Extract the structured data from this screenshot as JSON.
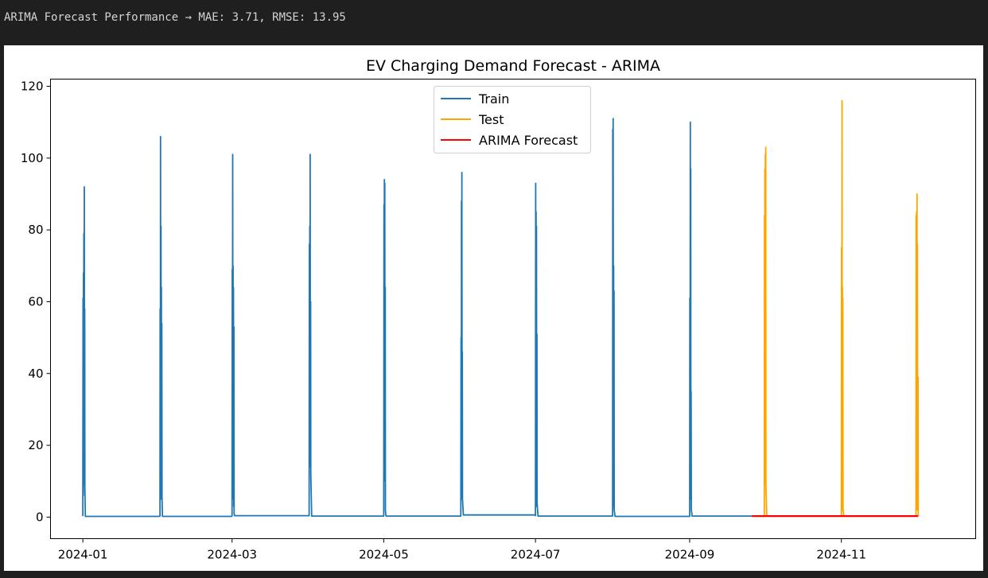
{
  "output": {
    "text": "ARIMA Forecast Performance → MAE: 3.71, RMSE: 13.95"
  },
  "colors": {
    "train": "#1f77b4",
    "test": "#ffa500",
    "forecast": "#ff0000"
  },
  "chart_data": {
    "type": "line",
    "title": "EV Charging Demand Forecast - ARIMA",
    "xlabel": "",
    "ylabel": "",
    "x_axis_kind": "date",
    "xlim": [
      "2023-12-19",
      "2024-12-25"
    ],
    "ylim": [
      -6,
      122
    ],
    "yticks": [
      0,
      20,
      40,
      60,
      80,
      100,
      120
    ],
    "xticks": [
      "2024-01",
      "2024-03",
      "2024-05",
      "2024-07",
      "2024-09",
      "2024-11"
    ],
    "grid": false,
    "legend": {
      "position": "upper-center",
      "entries": [
        "Train",
        "Test",
        "ARIMA Forecast"
      ]
    },
    "series": [
      {
        "name": "Train",
        "color": "#1f77b4",
        "points": [
          [
            "2024-01-01 00:00",
            0.3
          ],
          [
            "2024-01-01 02:00",
            61
          ],
          [
            "2024-01-01 04:00",
            6
          ],
          [
            "2024-01-01 06:00",
            68
          ],
          [
            "2024-01-01 08:00",
            12
          ],
          [
            "2024-01-01 10:00",
            79
          ],
          [
            "2024-01-01 12:00",
            9
          ],
          [
            "2024-01-01 14:00",
            92
          ],
          [
            "2024-01-01 16:00",
            11
          ],
          [
            "2024-01-01 18:00",
            58
          ],
          [
            "2024-01-01 20:00",
            8
          ],
          [
            "2024-01-02 00:00",
            0.2
          ],
          [
            "2024-01-31 18:00",
            0.2
          ],
          [
            "2024-02-01 00:00",
            0.3
          ],
          [
            "2024-02-01 02:00",
            58
          ],
          [
            "2024-02-01 04:00",
            14
          ],
          [
            "2024-02-01 06:00",
            106
          ],
          [
            "2024-02-01 08:00",
            20
          ],
          [
            "2024-02-01 10:00",
            81
          ],
          [
            "2024-02-01 12:00",
            5
          ],
          [
            "2024-02-01 14:00",
            64
          ],
          [
            "2024-02-01 16:00",
            9
          ],
          [
            "2024-02-01 18:00",
            54
          ],
          [
            "2024-02-01 20:00",
            5
          ],
          [
            "2024-02-02 00:00",
            0.2
          ],
          [
            "2024-02-29 18:00",
            0.2
          ],
          [
            "2024-03-01 00:00",
            0.3
          ],
          [
            "2024-03-01 02:00",
            69
          ],
          [
            "2024-03-01 04:00",
            23
          ],
          [
            "2024-03-01 06:00",
            101
          ],
          [
            "2024-03-01 08:00",
            20
          ],
          [
            "2024-03-01 10:00",
            70
          ],
          [
            "2024-03-01 12:00",
            5
          ],
          [
            "2024-03-01 14:00",
            64
          ],
          [
            "2024-03-01 16:00",
            3
          ],
          [
            "2024-03-01 18:00",
            53
          ],
          [
            "2024-03-01 20:00",
            1
          ],
          [
            "2024-03-02 00:00",
            0.4
          ],
          [
            "2024-03-31 18:00",
            0.4
          ],
          [
            "2024-04-01 00:00",
            0.4
          ],
          [
            "2024-04-01 02:00",
            76
          ],
          [
            "2024-04-01 04:00",
            16
          ],
          [
            "2024-04-01 06:00",
            81
          ],
          [
            "2024-04-01 08:00",
            15
          ],
          [
            "2024-04-01 10:00",
            101
          ],
          [
            "2024-04-01 12:00",
            14
          ],
          [
            "2024-04-01 14:00",
            60
          ],
          [
            "2024-04-01 16:00",
            12
          ],
          [
            "2024-04-02 00:00",
            0.3
          ],
          [
            "2024-04-30 18:00",
            0.3
          ],
          [
            "2024-05-01 00:00",
            0.3
          ],
          [
            "2024-05-01 02:00",
            87
          ],
          [
            "2024-05-01 04:00",
            12
          ],
          [
            "2024-05-01 06:00",
            94
          ],
          [
            "2024-05-01 08:00",
            40
          ],
          [
            "2024-05-01 10:00",
            93
          ],
          [
            "2024-05-01 12:00",
            10
          ],
          [
            "2024-05-01 14:00",
            64
          ],
          [
            "2024-05-01 16:00",
            2
          ],
          [
            "2024-05-01 20:00",
            0.5
          ],
          [
            "2024-05-02 00:00",
            0.3
          ],
          [
            "2024-05-31 18:00",
            0.3
          ],
          [
            "2024-06-01 00:00",
            0.3
          ],
          [
            "2024-06-01 02:00",
            50
          ],
          [
            "2024-06-01 04:00",
            5
          ],
          [
            "2024-06-01 06:00",
            88
          ],
          [
            "2024-06-01 08:00",
            14
          ],
          [
            "2024-06-01 10:00",
            96
          ],
          [
            "2024-06-01 12:00",
            19
          ],
          [
            "2024-06-01 14:00",
            46
          ],
          [
            "2024-06-01 16:00",
            5
          ],
          [
            "2024-06-02 00:00",
            0.6
          ],
          [
            "2024-06-30 18:00",
            0.6
          ],
          [
            "2024-07-01 00:00",
            0.4
          ],
          [
            "2024-07-01 02:00",
            93
          ],
          [
            "2024-07-01 04:00",
            5
          ],
          [
            "2024-07-01 06:00",
            85
          ],
          [
            "2024-07-01 08:00",
            3
          ],
          [
            "2024-07-01 10:00",
            81
          ],
          [
            "2024-07-01 12:00",
            6
          ],
          [
            "2024-07-01 14:00",
            51
          ],
          [
            "2024-07-01 16:00",
            4
          ],
          [
            "2024-07-02 00:00",
            0.3
          ],
          [
            "2024-07-31 18:00",
            0.3
          ],
          [
            "2024-08-01 00:00",
            0.3
          ],
          [
            "2024-08-01 02:00",
            108
          ],
          [
            "2024-08-01 04:00",
            3
          ],
          [
            "2024-08-01 06:00",
            111
          ],
          [
            "2024-08-01 08:00",
            12
          ],
          [
            "2024-08-01 10:00",
            70
          ],
          [
            "2024-08-01 12:00",
            3
          ],
          [
            "2024-08-01 14:00",
            63
          ],
          [
            "2024-08-01 16:00",
            2
          ],
          [
            "2024-08-02 00:00",
            0.2
          ],
          [
            "2024-08-31 18:00",
            0.2
          ],
          [
            "2024-09-01 00:00",
            0.2
          ],
          [
            "2024-09-01 02:00",
            61
          ],
          [
            "2024-09-01 04:00",
            8
          ],
          [
            "2024-09-01 06:00",
            110
          ],
          [
            "2024-09-01 08:00",
            12
          ],
          [
            "2024-09-01 10:00",
            97
          ],
          [
            "2024-09-01 12:00",
            5
          ],
          [
            "2024-09-01 14:00",
            35
          ],
          [
            "2024-09-01 16:00",
            2
          ],
          [
            "2024-09-02 00:00",
            0.3
          ],
          [
            "2024-09-26 00:00",
            0.3
          ]
        ]
      },
      {
        "name": "Test",
        "color": "#ffa500",
        "points": [
          [
            "2024-09-26 00:00",
            0.3
          ],
          [
            "2024-09-30 18:00",
            0.3
          ],
          [
            "2024-10-01 00:00",
            0.3
          ],
          [
            "2024-10-01 02:00",
            84
          ],
          [
            "2024-10-01 04:00",
            9
          ],
          [
            "2024-10-01 06:00",
            97
          ],
          [
            "2024-10-01 08:00",
            10
          ],
          [
            "2024-10-01 10:00",
            101
          ],
          [
            "2024-10-01 12:00",
            15
          ],
          [
            "2024-10-01 14:00",
            103
          ],
          [
            "2024-10-01 16:00",
            9
          ],
          [
            "2024-10-02 00:00",
            0.3
          ],
          [
            "2024-10-31 18:00",
            0.3
          ],
          [
            "2024-11-01 00:00",
            0.3
          ],
          [
            "2024-11-01 02:00",
            75
          ],
          [
            "2024-11-01 04:00",
            12
          ],
          [
            "2024-11-01 06:00",
            116
          ],
          [
            "2024-11-01 08:00",
            3
          ],
          [
            "2024-11-01 10:00",
            64
          ],
          [
            "2024-11-01 12:00",
            2
          ],
          [
            "2024-11-01 14:00",
            61
          ],
          [
            "2024-11-01 16:00",
            2
          ],
          [
            "2024-11-02 00:00",
            0.3
          ],
          [
            "2024-11-30 18:00",
            0.3
          ],
          [
            "2024-12-01 00:00",
            0.3
          ],
          [
            "2024-12-01 02:00",
            84
          ],
          [
            "2024-12-01 04:00",
            8
          ],
          [
            "2024-12-01 06:00",
            85
          ],
          [
            "2024-12-01 08:00",
            15
          ],
          [
            "2024-12-01 10:00",
            90
          ],
          [
            "2024-12-01 12:00",
            2
          ],
          [
            "2024-12-01 14:00",
            76
          ],
          [
            "2024-12-01 16:00",
            3
          ],
          [
            "2024-12-01 20:00",
            39
          ],
          [
            "2024-12-01 22:00",
            0.3
          ]
        ]
      },
      {
        "name": "ARIMA Forecast",
        "color": "#ff0000",
        "points": [
          [
            "2024-09-26 00:00",
            0.3
          ],
          [
            "2024-12-01 22:00",
            0.3
          ]
        ]
      }
    ]
  }
}
